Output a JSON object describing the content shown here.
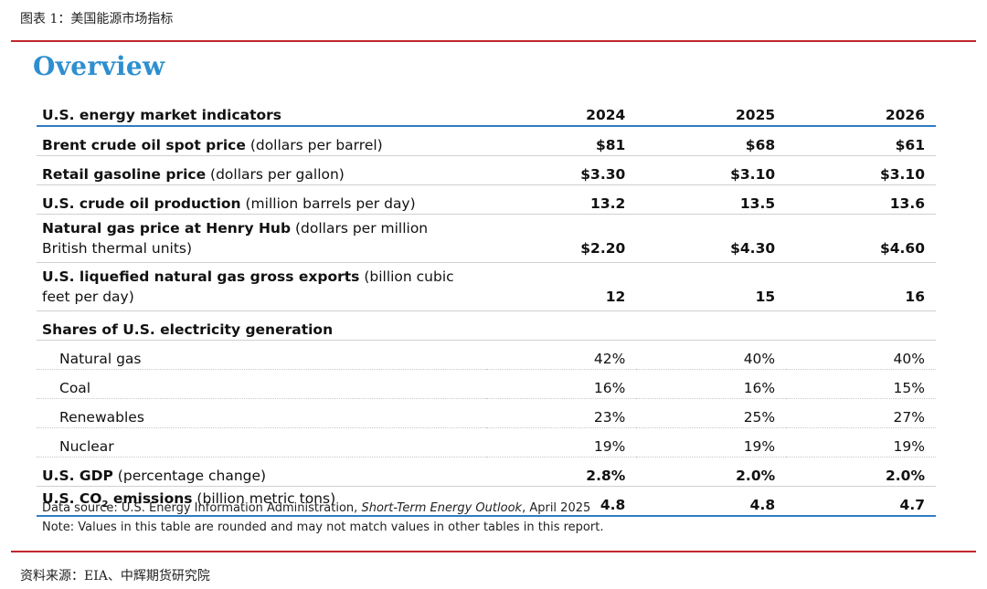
{
  "caption": "图表 1：美国能源市场指标",
  "heading": "Overview",
  "table": {
    "header": {
      "label": "U.S. energy market indicators",
      "years": [
        "2024",
        "2025",
        "2026"
      ]
    },
    "rows": [
      {
        "label": "Brent crude oil spot price",
        "unit": " (dollars per barrel)",
        "values": [
          "$81",
          "$68",
          "$61"
        ]
      },
      {
        "label": "Retail gasoline price",
        "unit": " (dollars per gallon)",
        "values": [
          "$3.30",
          "$3.10",
          "$3.10"
        ]
      },
      {
        "label": "U.S. crude oil production",
        "unit": " (million barrels per day)",
        "values": [
          "13.2",
          "13.5",
          "13.6"
        ]
      },
      {
        "label": "Natural gas price at Henry Hub",
        "unit": " (dollars per million British thermal units)",
        "values": [
          "$2.20",
          "$4.30",
          "$4.60"
        ]
      },
      {
        "label": "U.S. liquefied natural gas gross exports",
        "unit": " (billion cubic feet per day)",
        "values": [
          "12",
          "15",
          "16"
        ]
      }
    ],
    "section_title": "Shares of U.S. electricity generation",
    "sub_rows": [
      {
        "label": "Natural gas",
        "values": [
          "42%",
          "40%",
          "40%"
        ]
      },
      {
        "label": "Coal",
        "values": [
          "16%",
          "16%",
          "15%"
        ]
      },
      {
        "label": "Renewables",
        "values": [
          "23%",
          "25%",
          "27%"
        ]
      },
      {
        "label": "Nuclear",
        "values": [
          "19%",
          "19%",
          "19%"
        ]
      }
    ],
    "gdp": {
      "label": "U.S. GDP",
      "unit": " (percentage change)",
      "values": [
        "2.8%",
        "2.0%",
        "2.0%"
      ]
    },
    "co2": {
      "label_prefix": "U.S. CO",
      "label_sub": "2",
      "label_suffix": " emissions",
      "unit": " (billion metric tons)",
      "values": [
        "4.8",
        "4.8",
        "4.7"
      ]
    }
  },
  "notes": {
    "source_prefix": "Data source: U.S. Energy Information Administration, ",
    "source_title": "Short-Term Energy Outlook",
    "source_suffix": ", April 2025",
    "note": "Note: Values in this table are rounded and may not match values in other tables in this report."
  },
  "footer": "资料来源：EIA、中辉期货研究院"
}
